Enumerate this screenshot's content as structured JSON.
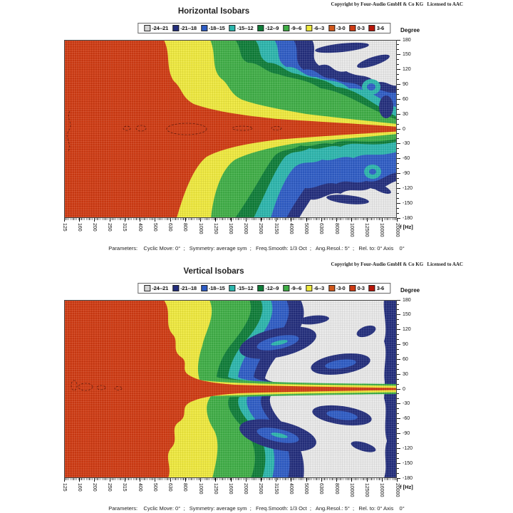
{
  "copyright": "Copyright by Four-Audio GmbH & Co KG   Licensed to AAC",
  "legend": {
    "items": [
      {
        "label": "-24--21",
        "color": "#d4d4d4"
      },
      {
        "label": "-21--18",
        "color": "#232e7d"
      },
      {
        "label": "-18--15",
        "color": "#2e5cc5"
      },
      {
        "label": "-15--12",
        "color": "#2cb6ad"
      },
      {
        "label": "-12--9",
        "color": "#0e7d38"
      },
      {
        "label": "-9--6",
        "color": "#3fae46"
      },
      {
        "label": "-6--3",
        "color": "#efe93d"
      },
      {
        "label": "-3-0",
        "color": "#d2581b"
      },
      {
        "label": "0-3",
        "color": "#cf3a12"
      },
      {
        "label": "3-6",
        "color": "#b91508"
      }
    ]
  },
  "charts": [
    {
      "title": "Horizontal Isobars",
      "y_axis_label": "Degree",
      "x_axis_label": "f [Hz]",
      "y_ticks": [
        "180",
        "150",
        "120",
        "90",
        "60",
        "30",
        "0",
        "-30",
        "-60",
        "-90",
        "-120",
        "-150",
        "-180"
      ],
      "x_ticks": [
        "125",
        "160",
        "200",
        "250",
        "315",
        "400",
        "500",
        "630",
        "800",
        "1000",
        "1250",
        "1600",
        "2000",
        "2500",
        "3150",
        "4000",
        "5000",
        "6300",
        "8000",
        "10000",
        "12500",
        "16000",
        "20000"
      ],
      "parameters": "Parameters:    Cyclic Move: 0°  ;   Symmetry: average sym  ;   Freq.Smooth: 1/3 Oct  ;   Ang.Resol.: 5°  ;   Rel. to: 0° Axis    0°"
    },
    {
      "title": "Vertical Isobars",
      "y_axis_label": "Degree",
      "x_axis_label": "f [Hz]",
      "y_ticks": [
        "180",
        "150",
        "120",
        "90",
        "60",
        "30",
        "0",
        "-30",
        "-60",
        "-90",
        "-120",
        "-150",
        "-180"
      ],
      "x_ticks": [
        "125",
        "160",
        "200",
        "250",
        "315",
        "400",
        "500",
        "630",
        "800",
        "1000",
        "1250",
        "1600",
        "2000",
        "2500",
        "3150",
        "4000",
        "5000",
        "6300",
        "8000",
        "10000",
        "12500",
        "16000",
        "20000"
      ],
      "parameters": "Parameters:    Cyclic Move: 0°  ;   Symmetry: average sym  ;   Freq.Smooth: 1/3 Oct  ;   Ang.Resol.: 5°  ;   Rel. to: 0° Axis    0°"
    }
  ],
  "chart_data": [
    {
      "type": "heatmap",
      "subtype": "isobar-contour",
      "title": "Horizontal Isobars",
      "xlabel": "f [Hz]",
      "ylabel": "Degree",
      "x_ticks_hz": [
        125,
        160,
        200,
        250,
        315,
        400,
        500,
        630,
        800,
        1000,
        1250,
        1600,
        2000,
        2500,
        3150,
        4000,
        5000,
        6300,
        8000,
        10000,
        12500,
        16000,
        20000
      ],
      "x_scale": "log-1/3-octave",
      "y_range_deg": [
        -180,
        180
      ],
      "y_tick_step_deg": 30,
      "grid": true,
      "legend_position": "top-center",
      "bands_db": [
        {
          "range": "-24--21",
          "color": "#d4d4d4"
        },
        {
          "range": "-21--18",
          "color": "#232e7d"
        },
        {
          "range": "-18--15",
          "color": "#2e5cc5"
        },
        {
          "range": "-15--12",
          "color": "#2cb6ad"
        },
        {
          "range": "-12--9",
          "color": "#0e7d38"
        },
        {
          "range": "-9--6",
          "color": "#3fae46"
        },
        {
          "range": "-6--3",
          "color": "#efe93d"
        },
        {
          "range": "-3-0",
          "color": "#d2581b"
        },
        {
          "range": "0-3",
          "color": "#cf3a12"
        },
        {
          "range": "3-6",
          "color": "#b91508"
        }
      ],
      "values_estimated": true,
      "approx_minus3dB_half_angle_deg": [
        180,
        180,
        180,
        180,
        180,
        170,
        115,
        90,
        72,
        62,
        55,
        45,
        36,
        30,
        25,
        21,
        17,
        14,
        12,
        10,
        9,
        8,
        7
      ],
      "parameters": {
        "cyclic_move": "0°",
        "symmetry": "average sym",
        "freq_smooth": "1/3 Oct",
        "ang_resol": "5°",
        "rel_to": "0° Axis 0°"
      }
    },
    {
      "type": "heatmap",
      "subtype": "isobar-contour",
      "title": "Vertical Isobars",
      "xlabel": "f [Hz]",
      "ylabel": "Degree",
      "x_ticks_hz": [
        125,
        160,
        200,
        250,
        315,
        400,
        500,
        630,
        800,
        1000,
        1250,
        1600,
        2000,
        2500,
        3150,
        4000,
        5000,
        6300,
        8000,
        10000,
        12500,
        16000,
        20000
      ],
      "x_scale": "log-1/3-octave",
      "y_range_deg": [
        -180,
        180
      ],
      "y_tick_step_deg": 30,
      "grid": true,
      "legend_position": "top-center",
      "bands_db": [
        {
          "range": "-24--21",
          "color": "#d4d4d4"
        },
        {
          "range": "-21--18",
          "color": "#232e7d"
        },
        {
          "range": "-18--15",
          "color": "#2e5cc5"
        },
        {
          "range": "-15--12",
          "color": "#2cb6ad"
        },
        {
          "range": "-12--9",
          "color": "#0e7d38"
        },
        {
          "range": "-9--6",
          "color": "#3fae46"
        },
        {
          "range": "-6--3",
          "color": "#efe93d"
        },
        {
          "range": "-3-0",
          "color": "#d2581b"
        },
        {
          "range": "0-3",
          "color": "#cf3a12"
        },
        {
          "range": "3-6",
          "color": "#b91508"
        }
      ],
      "values_estimated": true,
      "approx_minus3dB_half_angle_deg": [
        180,
        175,
        160,
        135,
        120,
        110,
        95,
        60,
        40,
        28,
        18,
        12,
        9,
        7,
        6,
        5,
        4,
        4,
        3,
        3,
        3,
        2,
        2
      ],
      "parameters": {
        "cyclic_move": "0°",
        "symmetry": "average sym",
        "freq_smooth": "1/3 Oct",
        "ang_resol": "5°",
        "rel_to": "0° Axis 0°"
      }
    }
  ]
}
